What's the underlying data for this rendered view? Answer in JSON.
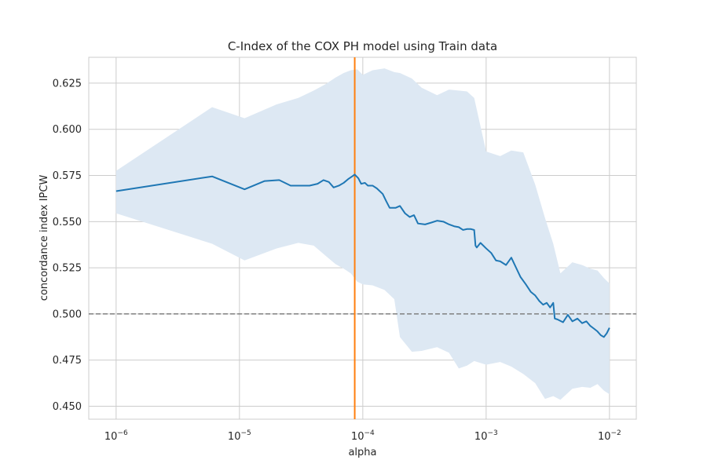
{
  "chart_data": {
    "type": "line",
    "title": "C-Index of the COX PH model using Train data",
    "xlabel": "alpha",
    "ylabel": "concordance index IPCW",
    "xscale": "log",
    "xlim": [
      6e-07,
      0.0165
    ],
    "ylim": [
      0.443,
      0.639
    ],
    "grid": true,
    "x_ticks": [
      {
        "value": 1e-06,
        "base": "10",
        "exp": "−6"
      },
      {
        "value": 1e-05,
        "base": "10",
        "exp": "−5"
      },
      {
        "value": 0.0001,
        "base": "10",
        "exp": "−4"
      },
      {
        "value": 0.001,
        "base": "10",
        "exp": "−3"
      },
      {
        "value": 0.01,
        "base": "10",
        "exp": "−2"
      }
    ],
    "y_ticks": [
      "0.450",
      "0.475",
      "0.500",
      "0.525",
      "0.550",
      "0.575",
      "0.600",
      "0.625"
    ],
    "colors": {
      "line": "#1f77b4",
      "band": "#dde8f3",
      "vline": "#ff7f0e",
      "hline": "#808080",
      "grid": "#cccccc"
    },
    "reference_hline": 0.5,
    "selected_alpha_vline": 8.6e-05,
    "series": [
      {
        "x": [
          1e-06,
          6e-06,
          1.1e-05,
          1.6e-05,
          2.1e-05,
          2.6e-05,
          3.1e-05,
          3.7e-05,
          4.3e-05,
          4.8e-05,
          5.3e-05,
          5.8e-05,
          6.4e-05,
          7e-05,
          7.6e-05,
          8.2e-05,
          8.6e-05,
          9.2e-05,
          9.7e-05,
          0.000104,
          0.00011,
          0.00012,
          0.00013,
          0.000145,
          0.000155,
          0.000165,
          0.000175,
          0.000185,
          0.0002,
          0.00022,
          0.00024,
          0.00026,
          0.00028,
          0.00032,
          0.00036,
          0.0004,
          0.00045,
          0.0005,
          0.00055,
          0.0006,
          0.00065,
          0.0007,
          0.00075,
          0.0008,
          0.00082,
          0.00084,
          0.0009,
          0.001,
          0.0011,
          0.0012,
          0.0013,
          0.00145,
          0.0016,
          0.00175,
          0.0019,
          0.0021,
          0.0023,
          0.0025,
          0.0027,
          0.0029,
          0.0031,
          0.0033,
          0.0035,
          0.0036,
          0.0038,
          0.0042,
          0.0046,
          0.005,
          0.0055,
          0.006,
          0.0065,
          0.007,
          0.0075,
          0.008,
          0.0085,
          0.009,
          0.0095,
          0.01
        ],
        "values": [
          0.5665,
          0.5745,
          0.5675,
          0.572,
          0.5725,
          0.5695,
          0.5695,
          0.5695,
          0.5705,
          0.5725,
          0.5715,
          0.5685,
          0.5695,
          0.571,
          0.573,
          0.5745,
          0.5755,
          0.5735,
          0.5705,
          0.571,
          0.5695,
          0.5695,
          0.568,
          0.565,
          0.561,
          0.5575,
          0.5575,
          0.5575,
          0.5585,
          0.5545,
          0.5525,
          0.5535,
          0.549,
          0.5485,
          0.5495,
          0.5505,
          0.55,
          0.5485,
          0.5475,
          0.547,
          0.5455,
          0.546,
          0.546,
          0.5455,
          0.537,
          0.536,
          0.5385,
          0.5355,
          0.533,
          0.529,
          0.5285,
          0.5265,
          0.5305,
          0.525,
          0.52,
          0.516,
          0.512,
          0.51,
          0.507,
          0.505,
          0.506,
          0.5035,
          0.506,
          0.4975,
          0.497,
          0.4955,
          0.4995,
          0.496,
          0.4975,
          0.495,
          0.496,
          0.4935,
          0.492,
          0.4905,
          0.4885,
          0.4875,
          0.4895,
          0.4925
        ]
      }
    ],
    "band": {
      "x": [
        1e-06,
        6e-06,
        1.1e-05,
        2e-05,
        3e-05,
        4e-05,
        5e-05,
        6e-05,
        7e-05,
        8e-05,
        9e-05,
        0.0001,
        0.00012,
        0.00015,
        0.00018,
        0.0002,
        0.00025,
        0.0003,
        0.0004,
        0.0005,
        0.0006,
        0.0007,
        0.0008,
        0.001,
        0.0013,
        0.0016,
        0.002,
        0.0025,
        0.003,
        0.0035,
        0.004,
        0.005,
        0.006,
        0.007,
        0.008,
        0.009,
        0.01
      ],
      "upper": [
        0.5775,
        0.612,
        0.606,
        0.6135,
        0.617,
        0.621,
        0.6245,
        0.628,
        0.6305,
        0.632,
        0.6325,
        0.6295,
        0.632,
        0.633,
        0.631,
        0.6305,
        0.6275,
        0.6225,
        0.6185,
        0.6215,
        0.621,
        0.6205,
        0.617,
        0.588,
        0.5855,
        0.5885,
        0.5875,
        0.57,
        0.552,
        0.538,
        0.522,
        0.528,
        0.5265,
        0.5245,
        0.5235,
        0.5195,
        0.5165
      ],
      "lower": [
        0.5545,
        0.538,
        0.529,
        0.5355,
        0.5385,
        0.537,
        0.5315,
        0.527,
        0.5245,
        0.522,
        0.5175,
        0.516,
        0.5155,
        0.513,
        0.508,
        0.4875,
        0.4795,
        0.48,
        0.482,
        0.479,
        0.4705,
        0.472,
        0.4745,
        0.4725,
        0.474,
        0.4715,
        0.4675,
        0.4625,
        0.454,
        0.4555,
        0.4535,
        0.4595,
        0.4605,
        0.46,
        0.462,
        0.4585,
        0.4565
      ]
    }
  }
}
